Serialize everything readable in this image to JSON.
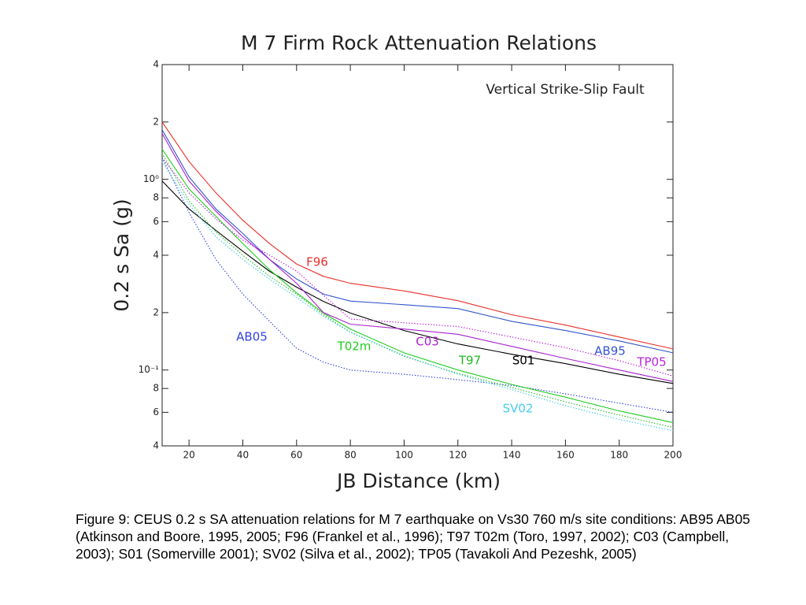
{
  "chart_data": {
    "type": "line",
    "title": "M 7 Firm Rock Attenuation Relations",
    "annotation": "Vertical Strike-Slip Fault",
    "x_label": "JB Distance (km)",
    "y_label": "0.2 s Sa (g)",
    "log_y": true,
    "xlim": [
      10,
      200
    ],
    "xticks": [
      20,
      40,
      60,
      80,
      100,
      120,
      140,
      160,
      180,
      200
    ],
    "ylim": [
      0.04,
      4
    ],
    "yticks": [
      4,
      2,
      {
        "value": 1,
        "label": "10⁰"
      },
      {
        "value": 0.8,
        "label": "8"
      },
      {
        "value": 0.6,
        "label": "6"
      },
      {
        "value": 0.4,
        "label": "4"
      },
      {
        "value": 0.2,
        "label": "2"
      },
      {
        "value": 0.1,
        "label": "10⁻¹"
      },
      {
        "value": 0.08,
        "label": "8"
      },
      {
        "value": 0.06,
        "label": "6"
      },
      {
        "value": 0.04,
        "label": "4"
      }
    ],
    "x": [
      10,
      20,
      30,
      40,
      50,
      60,
      70,
      80,
      100,
      120,
      140,
      160,
      180,
      200
    ],
    "series": [
      {
        "name": "F96",
        "color": "#e8302a",
        "style": "solid",
        "values": [
          2.0,
          1.24,
          0.85,
          0.61,
          0.46,
          0.36,
          0.31,
          0.285,
          0.26,
          0.231,
          0.195,
          0.172,
          0.149,
          0.129
        ]
      },
      {
        "name": "AB95",
        "color": "#3355cc",
        "style": "solid",
        "values": [
          1.82,
          1.03,
          0.7,
          0.52,
          0.38,
          0.3,
          0.25,
          0.23,
          0.22,
          0.21,
          0.18,
          0.161,
          0.142,
          0.123
        ]
      },
      {
        "name": "AB05",
        "color": "#3344dd",
        "style": "dotted",
        "values": [
          1.3,
          0.67,
          0.38,
          0.25,
          0.18,
          0.13,
          0.11,
          0.1,
          0.095,
          0.089,
          0.083,
          0.075,
          0.067,
          0.06
        ]
      },
      {
        "name": "S01",
        "color": "#000000",
        "style": "solid",
        "values": [
          0.98,
          0.7,
          0.54,
          0.42,
          0.329,
          0.272,
          0.229,
          0.199,
          0.161,
          0.137,
          0.121,
          0.108,
          0.095,
          0.085
        ]
      },
      {
        "name": "T02m",
        "color": "#22cc22",
        "style": "solid",
        "values": [
          1.44,
          0.89,
          0.64,
          0.46,
          0.335,
          0.254,
          0.199,
          0.164,
          0.123,
          0.1,
          0.084,
          0.072,
          0.061,
          0.053
        ]
      },
      {
        "name": "T97",
        "color": "#22bb22",
        "style": "dotted",
        "values": [
          1.37,
          0.77,
          0.53,
          0.4,
          0.31,
          0.25,
          0.195,
          0.158,
          0.118,
          0.096,
          0.081,
          0.068,
          0.058,
          0.05
        ]
      },
      {
        "name": "SV02",
        "color": "#44ccee",
        "style": "dotted",
        "values": [
          1.24,
          0.74,
          0.5,
          0.38,
          0.299,
          0.24,
          0.191,
          0.158,
          0.119,
          0.095,
          0.079,
          0.065,
          0.055,
          0.048
        ]
      },
      {
        "name": "C03",
        "color": "#aa22cc",
        "style": "solid",
        "values": [
          1.74,
          0.98,
          0.68,
          0.5,
          0.38,
          0.285,
          0.2,
          0.174,
          0.164,
          0.154,
          0.133,
          0.115,
          0.1,
          0.087
        ]
      },
      {
        "name": "TP05",
        "color": "#bb22dd",
        "style": "dotted",
        "values": [
          1.3,
          0.85,
          0.62,
          0.48,
          0.4,
          0.33,
          0.247,
          0.185,
          0.177,
          0.169,
          0.149,
          0.131,
          0.112,
          0.093
        ]
      }
    ]
  },
  "caption": "Figure 9: CEUS 0.2 s SA attenuation relations for M 7 earthquake on Vs30 760 m/s site conditions: AB95 AB05 (Atkinson and Boore, 1995, 2005; F96 (Frankel et al., 1996); T97 T02m (Toro, 1997, 2002); C03 (Campbell, 2003); S01 (Somerville 2001); SV02 (Silva et al., 2002);  TP05 (Tavakoli And Pezeshk, 2005)"
}
